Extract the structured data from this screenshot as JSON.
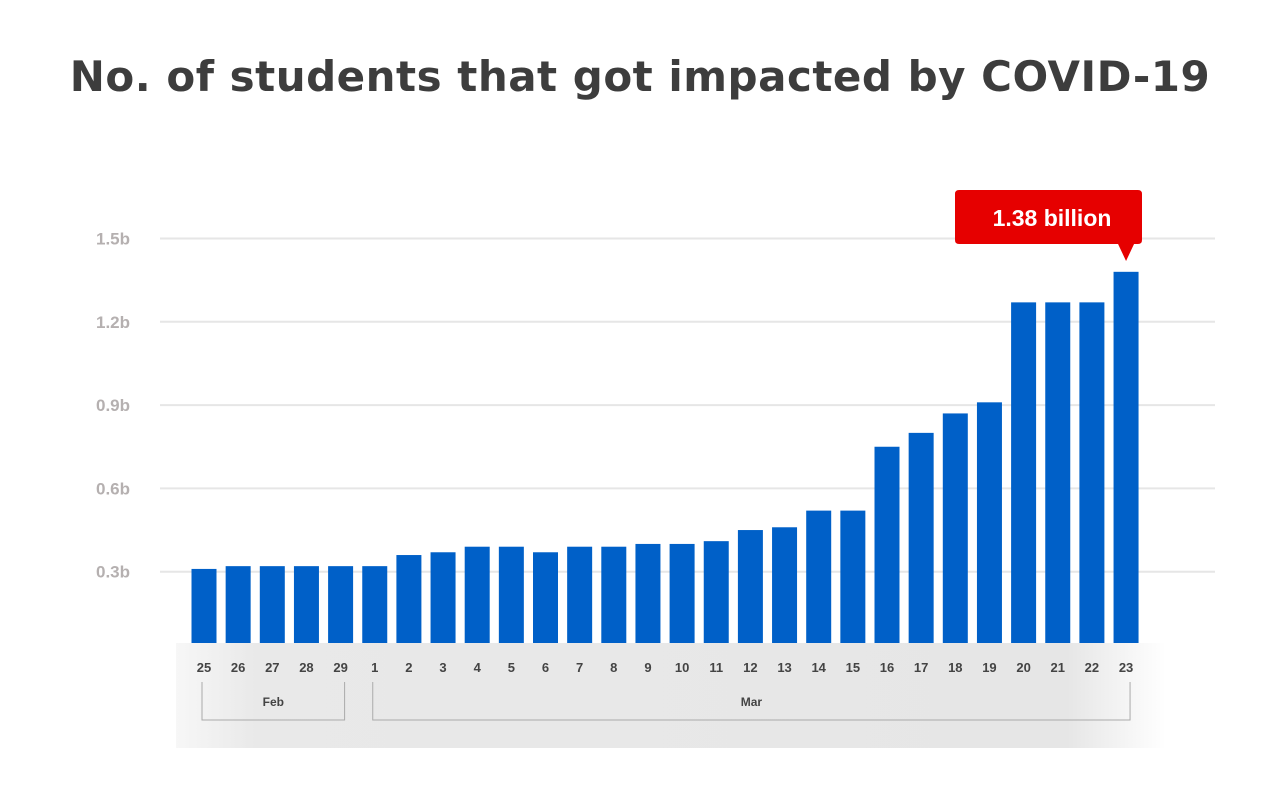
{
  "chart_data": {
    "type": "bar",
    "title": "No. of students that got impacted by COVID-19",
    "xlabel": "",
    "ylabel": "",
    "ylim": [
      0,
      1.5
    ],
    "yticks": [
      0.3,
      0.6,
      0.9,
      1.2,
      1.5
    ],
    "ytick_labels": [
      "0.3b",
      "0.6b",
      "0.9b",
      "1.2b",
      "1.5b"
    ],
    "grid": true,
    "categories": [
      "25",
      "26",
      "27",
      "28",
      "29",
      "1",
      "2",
      "3",
      "4",
      "5",
      "6",
      "7",
      "8",
      "9",
      "10",
      "11",
      "12",
      "13",
      "14",
      "15",
      "16",
      "17",
      "18",
      "19",
      "20",
      "21",
      "22",
      "23"
    ],
    "values": [
      0.31,
      0.32,
      0.32,
      0.32,
      0.32,
      0.32,
      0.36,
      0.37,
      0.39,
      0.39,
      0.37,
      0.39,
      0.39,
      0.4,
      0.4,
      0.41,
      0.45,
      0.46,
      0.52,
      0.52,
      0.75,
      0.8,
      0.87,
      0.91,
      1.27,
      1.27,
      1.27,
      1.38
    ],
    "value_unit": "billion",
    "month_groups": [
      {
        "label": "Feb",
        "from": "25",
        "to": "29"
      },
      {
        "label": "Mar",
        "from": "1",
        "to": "23"
      }
    ],
    "annotation": {
      "text": "1.38 billion",
      "category": "23"
    },
    "colors": {
      "bar": "#0060c8",
      "callout": "#e60000",
      "title": "#3d3d3d",
      "ytick": "#b5b0b0"
    }
  }
}
